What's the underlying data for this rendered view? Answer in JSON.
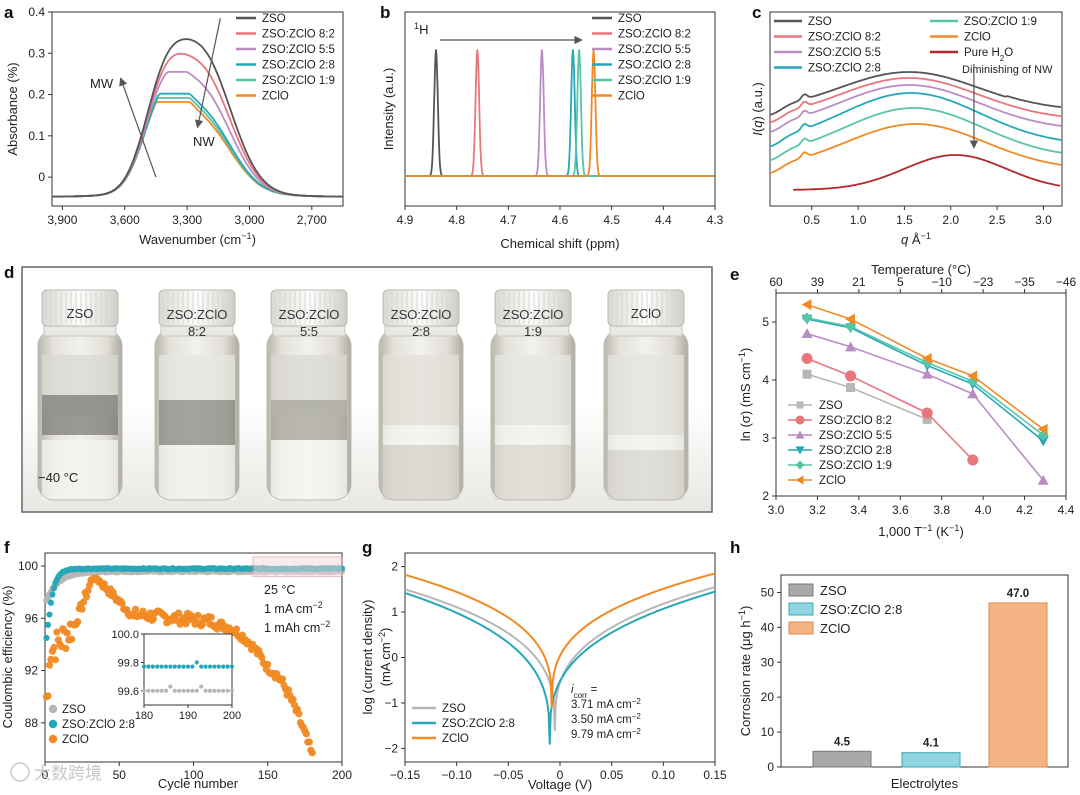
{
  "colors": {
    "zso": "#555555",
    "p82": "#e8767d",
    "p55": "#b98cc4",
    "p28": "#26a8b8",
    "p19": "#58c4a8",
    "zclo": "#f08a24",
    "water": "#b5262d",
    "zso_light": "#b7b7b7"
  },
  "panel_d": {
    "letter": "d",
    "temperature": "−40 °C",
    "vials": [
      {
        "line1": "ZSO",
        "line2": ""
      },
      {
        "line1": "ZSO:ZClO",
        "line2": "8:2"
      },
      {
        "line1": "ZSO:ZClO",
        "line2": "5:5"
      },
      {
        "line1": "ZSO:ZClO",
        "line2": "2:8"
      },
      {
        "line1": "ZSO:ZClO",
        "line2": "1:9"
      },
      {
        "line1": "ZClO",
        "line2": ""
      }
    ]
  },
  "watermark": "大数跨境",
  "chart_data": [
    {
      "panel": "a",
      "type": "line",
      "xlabel_main": "Wavenumber (cm",
      "xlabel_sup": "−1",
      "xlabel_end": ")",
      "ylabel": "Absorbance (%)",
      "xlim": [
        3950,
        2550
      ],
      "ylim": [
        -0.07,
        0.4
      ],
      "xticks": [
        3900,
        3600,
        3300,
        3000,
        2700
      ],
      "xtick_labels": [
        "3,900",
        "3,600",
        "3,300",
        "3,000",
        "2,700"
      ],
      "yticks": [
        0,
        0.1,
        0.2,
        0.3,
        0.4
      ],
      "ytick_labels": [
        "0",
        "0.1",
        "0.2",
        "0.3",
        "0.4"
      ],
      "annotations": [
        "MW",
        "NW"
      ],
      "series": [
        {
          "name": "ZSO",
          "color": "zso",
          "peak": 0.345
        },
        {
          "name": "ZSO:ZClO 8:2",
          "color": "p82",
          "peak": 0.302
        },
        {
          "name": "ZSO:ZClO 5:5",
          "color": "p55",
          "peak": 0.255
        },
        {
          "name": "ZSO:ZClO 2:8",
          "color": "p28",
          "peak": 0.202
        },
        {
          "name": "ZSO:ZClO 1:9",
          "color": "p19",
          "peak": 0.192
        },
        {
          "name": "ZClO",
          "color": "zclo",
          "peak": 0.182
        }
      ]
    },
    {
      "panel": "b",
      "type": "line",
      "xlabel": "Chemical shift (ppm)",
      "ylabel": "Intensity (a.u.)",
      "xlim": [
        4.9,
        4.3
      ],
      "xticks": [
        4.9,
        4.8,
        4.7,
        4.6,
        4.5,
        4.4,
        4.3
      ],
      "xtick_labels": [
        "4.9",
        "4.8",
        "4.7",
        "4.6",
        "4.5",
        "4.4",
        "4.3"
      ],
      "nucleus_sup": "1",
      "nucleus": "H",
      "series": [
        {
          "name": "ZSO",
          "color": "zso",
          "peak_ppm": 4.84
        },
        {
          "name": "ZSO:ZClO 8:2",
          "color": "p82",
          "peak_ppm": 4.76
        },
        {
          "name": "ZSO:ZClO 5:5",
          "color": "p55",
          "peak_ppm": 4.635
        },
        {
          "name": "ZSO:ZClO 2:8",
          "color": "p28",
          "peak_ppm": 4.575
        },
        {
          "name": "ZSO:ZClO 1:9",
          "color": "p19",
          "peak_ppm": 4.563
        },
        {
          "name": "ZClO",
          "color": "zclo",
          "peak_ppm": 4.535
        }
      ]
    },
    {
      "panel": "c",
      "type": "line",
      "xlabel": "q Å",
      "xlabel_sup": "−1",
      "ylabel_main": "I(q) (a.u.)",
      "xlim": [
        0.05,
        3.2
      ],
      "xticks": [
        0.5,
        1.0,
        1.5,
        2.0,
        2.5,
        3.0
      ],
      "xtick_labels": [
        "0.5",
        "1.0",
        "1.5",
        "2.0",
        "2.5",
        "3.0"
      ],
      "annotation": "Diminishing of NW",
      "series": [
        {
          "name": "ZSO",
          "color": "zso"
        },
        {
          "name": "ZSO:ZClO 8:2",
          "color": "p82"
        },
        {
          "name": "ZSO:ZClO 5:5",
          "color": "p55"
        },
        {
          "name": "ZSO:ZClO 2:8",
          "color": "p28"
        },
        {
          "name": "ZSO:ZClO 1:9",
          "color": "p19"
        },
        {
          "name": "ZClO",
          "color": "zclo"
        },
        {
          "name": "Pure H",
          "sub": "2",
          "tail": "O",
          "color": "water"
        }
      ]
    },
    {
      "panel": "e",
      "type": "line",
      "xlabel": "1,000 T",
      "xlabel_sup": "−1",
      "xlabel_end": " (K",
      "xlabel_end_sup": "−1",
      "xlabel_close": ")",
      "ylabel": "ln (σ) (mS cm",
      "ylabel_sup": "−1",
      "ylabel_end": ")",
      "top_axis_label": "Temperature (°C)",
      "xlim": [
        3.0,
        4.4
      ],
      "ylim": [
        2,
        5.5
      ],
      "xticks": [
        3.0,
        3.2,
        3.4,
        3.6,
        3.8,
        4.0,
        4.2,
        4.4
      ],
      "xtick_labels": [
        "3.0",
        "3.2",
        "3.4",
        "3.6",
        "3.8",
        "4.0",
        "4.2",
        "4.4"
      ],
      "yticks": [
        2,
        3,
        4,
        5
      ],
      "ytick_labels": [
        "2",
        "3",
        "4",
        "5"
      ],
      "top_ticks_x": [
        3.0,
        3.2,
        3.4,
        3.6,
        3.8,
        4.0,
        4.2,
        4.4
      ],
      "top_tick_labels": [
        "60",
        "39",
        "21",
        "5",
        "−10",
        "−23",
        "−35",
        "−46"
      ],
      "series": [
        {
          "name": "ZSO",
          "color": "zso_light",
          "marker": "square",
          "x": [
            3.15,
            3.36,
            3.73
          ],
          "y": [
            4.1,
            3.87,
            3.32
          ]
        },
        {
          "name": "ZSO:ZClO 8:2",
          "color": "p82",
          "marker": "circle",
          "x": [
            3.15,
            3.36,
            3.73,
            3.95
          ],
          "y": [
            4.37,
            4.07,
            3.43,
            2.62
          ]
        },
        {
          "name": "ZSO:ZClO 5:5",
          "color": "p55",
          "marker": "triangle-up",
          "x": [
            3.15,
            3.36,
            3.73,
            3.95,
            4.29
          ],
          "y": [
            4.8,
            4.57,
            4.1,
            3.76,
            2.27
          ]
        },
        {
          "name": "ZSO:ZClO 2:8",
          "color": "p28",
          "marker": "triangle-down",
          "x": [
            3.15,
            3.36,
            3.73,
            3.95,
            4.29
          ],
          "y": [
            5.05,
            4.9,
            4.25,
            3.93,
            2.95
          ]
        },
        {
          "name": "ZSO:ZClO 1:9",
          "color": "p19",
          "marker": "diamond",
          "x": [
            3.15,
            3.36,
            3.73,
            3.95,
            4.29
          ],
          "y": [
            5.07,
            4.92,
            4.3,
            3.98,
            3.05
          ]
        },
        {
          "name": "ZClO",
          "color": "zclo",
          "marker": "triangle-left",
          "x": [
            3.15,
            3.36,
            3.73,
            3.95,
            4.29
          ],
          "y": [
            5.3,
            5.05,
            4.37,
            4.07,
            3.15
          ]
        }
      ]
    },
    {
      "panel": "f",
      "type": "scatter",
      "xlabel": "Cycle number",
      "ylabel": "Coulombic efficiency (%)",
      "xlim": [
        0,
        200
      ],
      "ylim": [
        85,
        101
      ],
      "xticks": [
        0,
        50,
        100,
        150,
        200
      ],
      "xtick_labels": [
        "0",
        "50",
        "100",
        "150",
        "200"
      ],
      "yticks": [
        88,
        92,
        96,
        100
      ],
      "ytick_labels": [
        "88",
        "92",
        "96",
        "100"
      ],
      "conditions": [
        "25 °C",
        "1 mA cm",
        "1 mAh cm"
      ],
      "conditions_sup": "−2",
      "inset": {
        "xlim": [
          180,
          200
        ],
        "ylim": [
          99.5,
          100
        ],
        "xticks": [
          180,
          190,
          200
        ],
        "xtick_labels": [
          "180",
          "190",
          "200"
        ],
        "yticks": [
          99.6,
          99.8,
          100.0
        ],
        "ytick_labels": [
          "99.6",
          "99.8",
          "100.0"
        ],
        "zso_level": 99.6,
        "p28_level": 99.77
      },
      "series": [
        {
          "name": "ZSO",
          "color": "zso_light",
          "plateau": 99.6
        },
        {
          "name": "ZSO:ZClO 2:8",
          "color": "p28",
          "plateau": 99.8
        },
        {
          "name": "ZClO",
          "color": "zclo",
          "peak": 99.4,
          "peak_cycle": 33
        }
      ]
    },
    {
      "panel": "g",
      "type": "line",
      "xlabel": "Voltage (V)",
      "ylabel": "log (current density)",
      "ylabel2": "(mA cm",
      "ylabel2_sup": "−2",
      "ylabel2_end": ")",
      "xlim": [
        -0.15,
        0.15
      ],
      "ylim": [
        -2.3,
        2.3
      ],
      "xticks": [
        -0.15,
        -0.1,
        -0.05,
        0,
        0.05,
        0.1,
        0.15
      ],
      "xtick_labels": [
        "−0.15",
        "−0.10",
        "−0.05",
        "0",
        "0.05",
        "0.10",
        "0.15"
      ],
      "yticks": [
        -2,
        -1,
        0,
        1,
        2
      ],
      "ytick_labels": [
        "−2",
        "−1",
        "0",
        "1",
        "2"
      ],
      "icorr_label": "i",
      "icorr_sub": "corr",
      "icorr_eq": " =",
      "series": [
        {
          "name": "ZSO",
          "color": "zso_light",
          "icorr": "3.71 mA cm",
          "ecorr": -0.005
        },
        {
          "name": "ZSO:ZClO 2:8",
          "color": "p28",
          "icorr": "3.50 mA cm",
          "ecorr": -0.01
        },
        {
          "name": "ZClO",
          "color": "zclo",
          "icorr": "9.79 mA cm",
          "ecorr": -0.008
        }
      ]
    },
    {
      "panel": "h",
      "type": "bar",
      "xlabel": "Electrolytes",
      "ylabel": "Corrosion rate (μg h",
      "ylabel_sup": "−1",
      "ylabel_end": ")",
      "ylim": [
        0,
        55
      ],
      "yticks": [
        0,
        10,
        20,
        30,
        40,
        50
      ],
      "ytick_labels": [
        "0",
        "10",
        "20",
        "30",
        "40",
        "50"
      ],
      "categories": [
        "ZSO",
        "ZSO:ZClO 2:8",
        "ZClO"
      ],
      "values": [
        4.5,
        4.1,
        47.0
      ],
      "value_labels": [
        "4.5",
        "4.1",
        "47.0"
      ],
      "bar_colors": [
        "#a9a9a9",
        "#8fd6e0",
        "#f5b483"
      ],
      "edge_colors": [
        "#777777",
        "#3aa7b6",
        "#e08a4a"
      ]
    }
  ]
}
